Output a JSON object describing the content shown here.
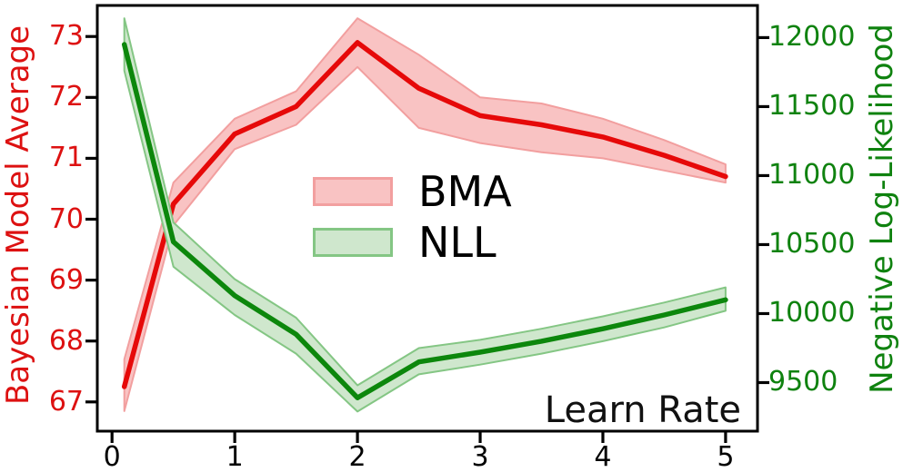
{
  "chart_data": {
    "type": "line",
    "title": "",
    "x_label_annotation": "Learn Rate",
    "grid": false,
    "legend_position": "center",
    "x": [
      0.1,
      0.5,
      1.0,
      1.5,
      2.0,
      2.5,
      3.0,
      3.5,
      4.0,
      4.5,
      5.0
    ],
    "x_ticks": [
      0,
      1,
      2,
      3,
      4,
      5
    ],
    "x_range": [
      -0.12,
      5.26
    ],
    "axes": {
      "left": {
        "label": "Bayesian Model Average",
        "color": "#dd1111",
        "ticks": [
          67,
          68,
          69,
          70,
          71,
          72,
          73
        ],
        "range": [
          66.52,
          73.51
        ]
      },
      "right": {
        "label": "Negative Log-Likelihood",
        "color": "#0f820f",
        "ticks": [
          9500,
          10000,
          10500,
          11000,
          11500,
          12000
        ],
        "range": [
          9148,
          12233
        ]
      }
    },
    "series": [
      {
        "name": "BMA",
        "axis": "left",
        "line_color": "#e60909",
        "band_fill": "#f9c3c3",
        "band_edge": "#f29f9f",
        "values": [
          67.25,
          70.25,
          71.4,
          71.85,
          72.9,
          72.15,
          71.7,
          71.55,
          71.35,
          71.05,
          70.7
        ],
        "band_upper": [
          67.7,
          70.6,
          71.65,
          72.1,
          73.3,
          72.7,
          72.0,
          71.9,
          71.65,
          71.3,
          70.9
        ],
        "band_lower": [
          66.85,
          69.9,
          71.15,
          71.55,
          72.5,
          71.5,
          71.25,
          71.1,
          71.0,
          70.8,
          70.6
        ]
      },
      {
        "name": "NLL",
        "axis": "right",
        "line_color": "#0c870c",
        "band_fill": "#cfe7cd",
        "band_edge": "#84c684",
        "values": [
          11950,
          10520,
          10130,
          9850,
          9390,
          9650,
          9720,
          9800,
          9890,
          9990,
          10100
        ],
        "band_upper": [
          12140,
          10660,
          10250,
          9970,
          9480,
          9750,
          9810,
          9890,
          9980,
          10080,
          10190
        ],
        "band_lower": [
          11760,
          10340,
          9990,
          9710,
          9290,
          9560,
          9630,
          9710,
          9800,
          9900,
          10020
        ]
      }
    ]
  }
}
